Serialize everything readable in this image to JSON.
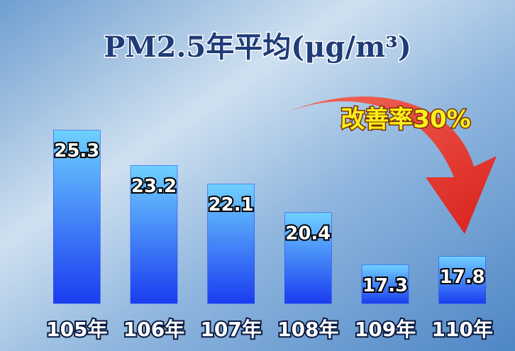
{
  "chart_data": {
    "type": "bar",
    "title": "PM2.5年平均(μg/m³)",
    "annotation": "改善率30%",
    "categories": [
      "105年",
      "106年",
      "107年",
      "108年",
      "109年",
      "110年"
    ],
    "values": [
      25.3,
      23.2,
      22.1,
      20.4,
      17.3,
      17.8
    ],
    "color": "#1a3cf0",
    "ylim": [
      15,
      26
    ]
  }
}
